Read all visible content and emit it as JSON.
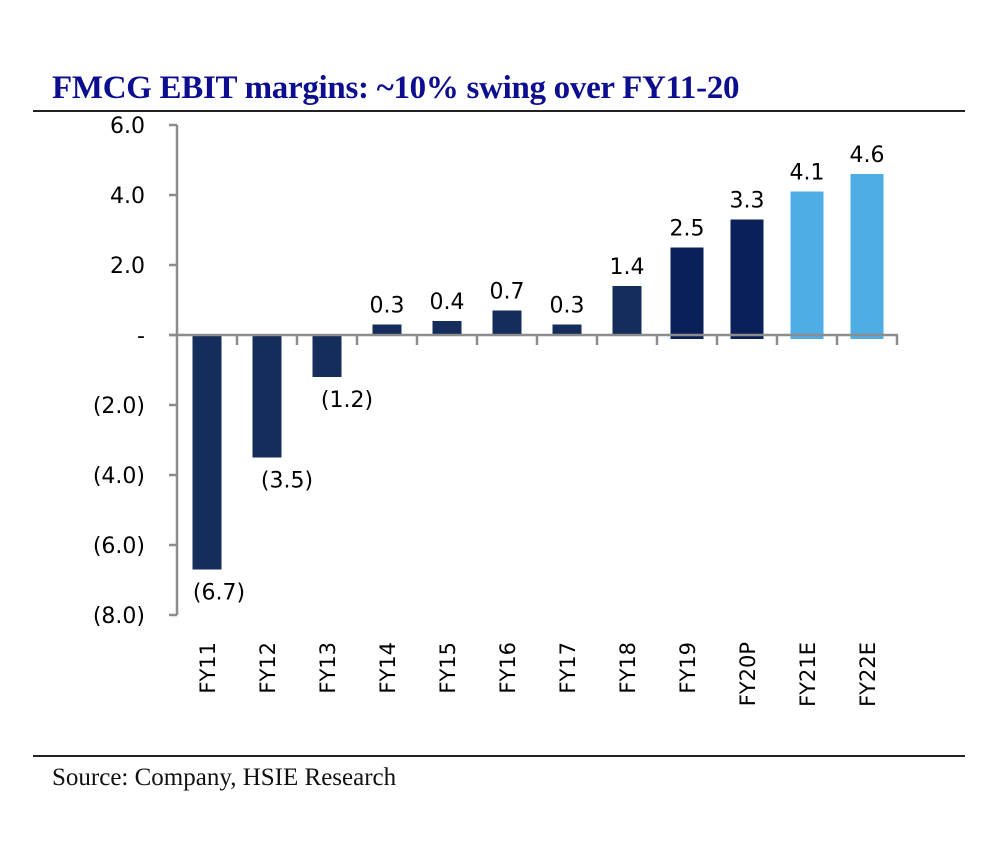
{
  "title": "FMCG EBIT margins: ~10% swing over FY11-20",
  "source": "Source: Company, HSIE Research",
  "colors": {
    "title": "#0d0d8f",
    "actual": "#142d5a",
    "recent": "#0a2058",
    "estimate": "#4fade6",
    "axis": "#8c8c8c"
  },
  "chart_data": {
    "type": "bar",
    "title": "FMCG EBIT margins: ~10% swing over FY11-20",
    "xlabel": "",
    "ylabel": "",
    "categories": [
      "FY11",
      "FY12",
      "FY13",
      "FY14",
      "FY15",
      "FY16",
      "FY17",
      "FY18",
      "FY19",
      "FY20P",
      "FY21E",
      "FY22E"
    ],
    "values": [
      -6.7,
      -3.5,
      -1.2,
      0.3,
      0.4,
      0.7,
      0.3,
      1.4,
      2.5,
      3.3,
      4.1,
      4.6
    ],
    "data_labels": [
      "(6.7)",
      "(3.5)",
      "(1.2)",
      "0.3",
      "0.4",
      "0.7",
      "0.3",
      "1.4",
      "2.5",
      "3.3",
      "4.1",
      "4.6"
    ],
    "bar_groups": [
      "actual",
      "actual",
      "actual",
      "actual",
      "actual",
      "actual",
      "actual",
      "actual",
      "recent",
      "recent",
      "estimate",
      "estimate"
    ],
    "ylim": [
      -8,
      6
    ],
    "yticks": [
      6,
      4,
      2,
      0,
      -2,
      -4,
      -6,
      -8
    ],
    "ytick_labels": [
      "6.0",
      "4.0",
      "2.0",
      "-",
      "(2.0)",
      "(4.0)",
      "(6.0)",
      "(8.0)"
    ],
    "grid": false,
    "legend": "none"
  }
}
